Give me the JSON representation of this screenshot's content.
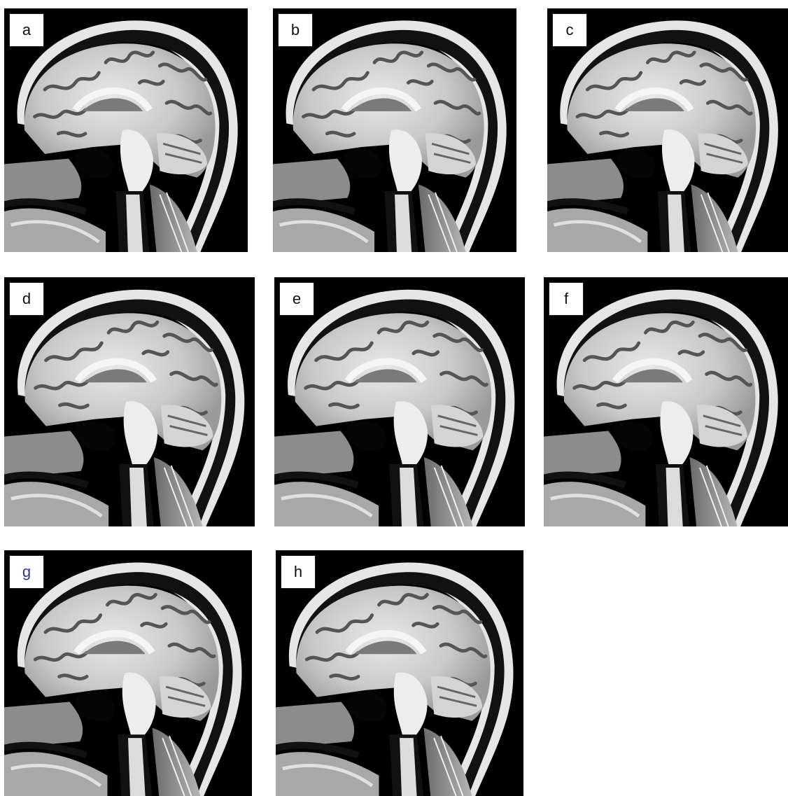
{
  "figure": {
    "panels": [
      {
        "label": "a"
      },
      {
        "label": "b"
      },
      {
        "label": "c"
      },
      {
        "label": "d"
      },
      {
        "label": "e"
      },
      {
        "label": "f"
      },
      {
        "label": "g",
        "label_color": "#2a36a8"
      },
      {
        "label": "h"
      }
    ],
    "image_subject": "sagittal-mri-brain-slice"
  }
}
